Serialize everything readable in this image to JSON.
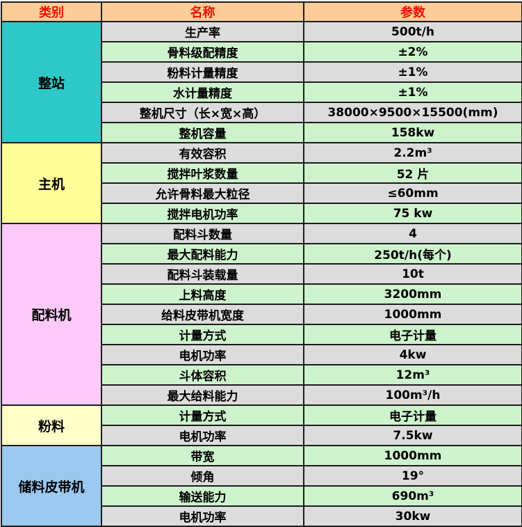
{
  "colors": {
    "header_bg": "#FCCC99",
    "header_text": "#EE1100",
    "row_gray": "#DCDCDC",
    "row_green": "#CDF3CC",
    "border": "#1b1b1b"
  },
  "table": {
    "headers": [
      {
        "label": "类别"
      },
      {
        "label": "名称"
      },
      {
        "label": "参数"
      }
    ],
    "sections": [
      {
        "category": "整站",
        "color": "#2EC8C8",
        "rows": [
          {
            "name": "生产率",
            "value": "500t/h"
          },
          {
            "name": "骨料级配精度",
            "value": "±2%"
          },
          {
            "name": "粉料计量精度",
            "value": "±1%"
          },
          {
            "name": "水计量精度",
            "value": "±1%"
          },
          {
            "name": "整机尺寸（长×宽×高）",
            "value": "38000×9500×15500(mm)"
          },
          {
            "name": "整机容量",
            "value": "158kw"
          }
        ]
      },
      {
        "category": "主机",
        "color": "#FFFE99",
        "rows": [
          {
            "name": "有效容积",
            "value": "2.2m³"
          },
          {
            "name": "搅拌叶浆数量",
            "value": "52 片"
          },
          {
            "name": "允许骨料最大粒径",
            "value": "≤60mm"
          },
          {
            "name": "搅拌电机功率",
            "value": "75 kw"
          }
        ]
      },
      {
        "category": "配料机",
        "color": "#FBCAF8",
        "rows": [
          {
            "name": "配料斗数量",
            "value": "4"
          },
          {
            "name": "最大配料能力",
            "value": "250t/h(每个)"
          },
          {
            "name": "配料斗装载量",
            "value": "10t"
          },
          {
            "name": "上料高度",
            "value": "3200mm"
          },
          {
            "name": "给料皮带机宽度",
            "value": "1000mm"
          },
          {
            "name": "计量方式",
            "value": "电子计量"
          },
          {
            "name": "电机功率",
            "value": "4kw"
          },
          {
            "name": "斗体容积",
            "value": "12m³"
          },
          {
            "name": "最大给料能力",
            "value": "100m³/h"
          }
        ]
      },
      {
        "category": "粉料",
        "color": "#FFFFC9",
        "rows": [
          {
            "name": "计量方式",
            "value": "电子计量"
          },
          {
            "name": "电机功率",
            "value": "7.5kw"
          }
        ]
      },
      {
        "category": "储料皮带机",
        "color": "#9AC8EE",
        "rows": [
          {
            "name": "带宽",
            "value": "1000mm"
          },
          {
            "name": "倾角",
            "value": "19°"
          },
          {
            "name": "输送能力",
            "value": "690m³"
          },
          {
            "name": "电机功率",
            "value": "30kw"
          }
        ]
      }
    ]
  }
}
